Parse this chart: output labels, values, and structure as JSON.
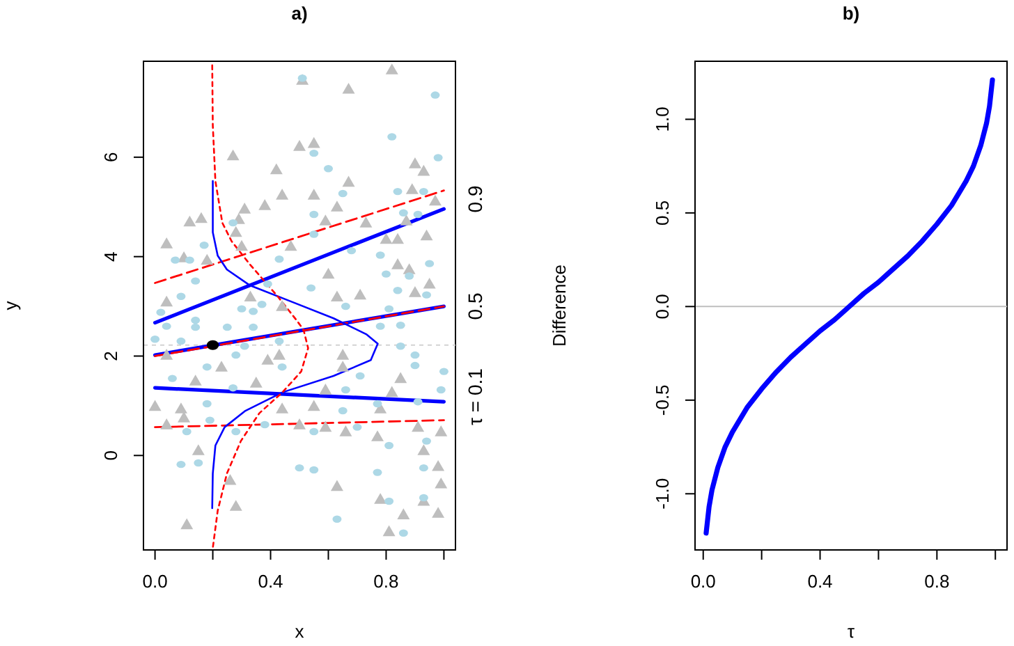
{
  "chart_data": [
    {
      "type": "scatter",
      "title": "a)",
      "xlabel": "x",
      "ylabel": "y",
      "xlim": [
        -0.04,
        1.04
      ],
      "ylim": [
        -1.9,
        7.93
      ],
      "xticks": [
        {
          "value": 0,
          "label": "0.0"
        },
        {
          "value": 0.2,
          "label": null
        },
        {
          "value": 0.4,
          "label": "0.4"
        },
        {
          "value": 0.6,
          "label": null
        },
        {
          "value": 0.8,
          "label": "0.8"
        },
        {
          "value": 1,
          "label": null
        }
      ],
      "yticks": [
        0,
        2,
        4,
        6
      ],
      "ref_lines": [
        {
          "axis": "y",
          "value": 2.22,
          "color": "#d3d3d3",
          "line_style": "dotted"
        }
      ],
      "annotations": [
        "τ = 0.1",
        "0.5",
        "0.9"
      ],
      "series": [
        {
          "marker": "triangle",
          "color": "#bebebe",
          "x": [
            0.82,
            0.51,
            0.67,
            0.55,
            0.5,
            0.27,
            0.42,
            0.9,
            0.93,
            0.67,
            0.44,
            0.55,
            0.38,
            0.63,
            0.89,
            0.97,
            0.16,
            0.12,
            0.31,
            0.29,
            0.59,
            0.73,
            0.87,
            0.04,
            0.28,
            0.1,
            0.18,
            0.3,
            0.47,
            0.8,
            0.84,
            0.94,
            0.6,
            0.84,
            0.88,
            0.95,
            0.9,
            0.63,
            0.71,
            0.04,
            0.33,
            0.44,
            0.04,
            0.23,
            0.39,
            0.43,
            0.65,
            0.65,
            0.85,
            0.14,
            0.35,
            0.59,
            0.82,
            0,
            0.09,
            0.44,
            0.55,
            0.78,
            0.04,
            0.1,
            0.5,
            0.59,
            0.66,
            0.91,
            0.99,
            0.77,
            0.15,
            0.93,
            0.98,
            0.26,
            0.63,
            0.78,
            0.93,
            0.99,
            0.28,
            0.11,
            0.98,
            0.86,
            0.81
          ],
          "values": [
            7.76,
            7.55,
            7.37,
            6.28,
            6.22,
            6.03,
            5.75,
            5.87,
            5.72,
            5.5,
            5.24,
            5.24,
            5.03,
            5.0,
            5.35,
            5.12,
            4.77,
            4.7,
            4.96,
            4.75,
            4.72,
            4.68,
            4.72,
            4.26,
            4.49,
            3.98,
            3.93,
            4.21,
            4.21,
            4.35,
            4.35,
            4.42,
            3.65,
            3.84,
            3.74,
            3.45,
            3.28,
            3.19,
            3.23,
            3.09,
            3.19,
            3.0,
            2.02,
            1.78,
            1.92,
            2.02,
            2.02,
            1.78,
            1.55,
            1.5,
            1.46,
            1.32,
            1.27,
            0.99,
            0.94,
            0.94,
            0.99,
            0.94,
            0.62,
            0.76,
            0.62,
            0.57,
            0.48,
            0.57,
            0.48,
            0.38,
            0.1,
            0.1,
            -0.22,
            -0.5,
            -0.62,
            -0.88,
            -0.92,
            -0.57,
            -1.02,
            -1.39,
            -1.16,
            -1.19,
            -1.53
          ]
        },
        {
          "marker": "circle",
          "color": "#add8e6",
          "x": [
            0.51,
            0.97,
            0.82,
            0.55,
            0.98,
            0.6,
            0.84,
            0.65,
            0.93,
            0.55,
            0.86,
            0.91,
            0.27,
            0.55,
            0.17,
            0.07,
            0.12,
            0.43,
            0.68,
            0.78,
            0.95,
            0.14,
            0.39,
            0.54,
            0.8,
            0.88,
            0.09,
            0.84,
            0.94,
            0.02,
            0.3,
            0.34,
            0.37,
            0.66,
            0.14,
            0.81,
            0.04,
            0.14,
            0.25,
            0.34,
            0.85,
            0.78,
            0,
            0.09,
            0.31,
            0.43,
            0.85,
            0.9,
            0.28,
            0.18,
            0.44,
            0.71,
            0.9,
            1.0,
            0.06,
            0.27,
            0.66,
            0.99,
            0.18,
            0.65,
            0.77,
            0.91,
            0.19,
            0.38,
            0.55,
            0.11,
            0.7,
            0.28,
            0.81,
            0.94,
            0.09,
            0.15,
            0.5,
            0.55,
            0.77,
            0.93,
            0.81,
            0.93,
            0.63,
            0.86
          ],
          "values": [
            7.59,
            7.25,
            6.41,
            6.08,
            5.99,
            5.77,
            5.31,
            5.27,
            5.31,
            4.85,
            4.88,
            4.85,
            4.68,
            4.45,
            4.23,
            3.93,
            3.93,
            3.95,
            4.12,
            4.03,
            3.86,
            3.51,
            3.45,
            3.37,
            3.65,
            3.61,
            3.2,
            3.32,
            3.23,
            2.88,
            2.95,
            2.9,
            3.04,
            3.0,
            2.72,
            2.95,
            2.6,
            2.58,
            2.58,
            2.58,
            2.62,
            2.6,
            2.34,
            2.3,
            2.2,
            2.3,
            2.2,
            2.02,
            2.02,
            1.78,
            1.78,
            1.6,
            1.81,
            1.69,
            1.55,
            1.36,
            1.32,
            1.32,
            1.04,
            0.9,
            1.04,
            1.08,
            0.71,
            0.62,
            0.48,
            0.48,
            0.57,
            0.48,
            0.2,
            0.29,
            -0.18,
            -0.15,
            -0.25,
            -0.29,
            -0.34,
            -0.25,
            -0.92,
            -0.85,
            -1.28,
            -1.56
          ]
        },
        {
          "type": "line",
          "marker": "none",
          "line_style": "solid",
          "color": "#0000ff",
          "x": [
            0,
            1
          ],
          "values": [
            2.67,
            4.96
          ]
        },
        {
          "type": "line",
          "marker": "none",
          "line_style": "dashed",
          "color": "#ff0000",
          "x": [
            0,
            1
          ],
          "values": [
            3.47,
            5.33
          ]
        },
        {
          "type": "line",
          "marker": "none",
          "line_style": "solid",
          "color": "#0000ff",
          "x": [
            0,
            1
          ],
          "values": [
            2.02,
            3.0
          ]
        },
        {
          "type": "line",
          "marker": "none",
          "line_style": "dashed",
          "color": "#ff0000",
          "x": [
            0,
            1
          ],
          "values": [
            2.0,
            3.0
          ]
        },
        {
          "type": "line",
          "marker": "none",
          "line_style": "solid",
          "color": "#0000ff",
          "x": [
            0,
            1
          ],
          "values": [
            1.36,
            1.08
          ]
        },
        {
          "type": "line",
          "marker": "none",
          "line_style": "dashed",
          "color": "#ff0000",
          "x": [
            0,
            1
          ],
          "values": [
            0.57,
            0.71
          ]
        },
        {
          "type": "line",
          "marker": "none",
          "line_style": "solid",
          "color": "#0000ff",
          "x": [
            0.2,
            0.2,
            0.217,
            0.249,
            0.329,
            0.474,
            0.618,
            0.731,
            0.771,
            0.747,
            0.618,
            0.441,
            0.313,
            0.241,
            0.209,
            0.2,
            0.198
          ],
          "values": [
            5.52,
            4.49,
            4.02,
            3.74,
            3.42,
            3.09,
            2.76,
            2.44,
            2.25,
            1.92,
            1.6,
            1.27,
            0.9,
            0.57,
            0.2,
            -0.36,
            -1.06
          ]
        },
        {
          "type": "line",
          "marker": "none",
          "line_style": "dotted",
          "color": "#ff0000",
          "x": [
            0.198,
            0.2,
            0.209,
            0.233,
            0.265,
            0.329,
            0.426,
            0.49,
            0.514,
            0.53,
            0.506,
            0.441,
            0.361,
            0.297,
            0.249,
            0.217,
            0.2
          ],
          "values": [
            7.85,
            6.64,
            5.52,
            4.68,
            4.31,
            3.84,
            3.19,
            2.72,
            2.53,
            2.16,
            1.69,
            1.27,
            0.85,
            0.29,
            -0.36,
            -1.11,
            -1.86
          ]
        },
        {
          "marker": "circle",
          "color": "#000000",
          "x": [
            0.2
          ],
          "values": [
            2.22
          ]
        }
      ]
    },
    {
      "type": "line",
      "title": "b)",
      "xlabel": "τ",
      "ylabel": "Difference",
      "xlim": [
        -0.028,
        1.04
      ],
      "ylim": [
        -1.3,
        1.31
      ],
      "xticks": [
        {
          "value": 0,
          "label": "0.0"
        },
        {
          "value": 0.2,
          "label": null
        },
        {
          "value": 0.4,
          "label": "0.4"
        },
        {
          "value": 0.6,
          "label": null
        },
        {
          "value": 0.8,
          "label": "0.8"
        },
        {
          "value": 1,
          "label": null
        }
      ],
      "yticks": [
        {
          "value": -1,
          "label": "-1.0"
        },
        {
          "value": -0.5,
          "label": "-0.5"
        },
        {
          "value": 0,
          "label": "0.0"
        },
        {
          "value": 0.5,
          "label": "0.5"
        },
        {
          "value": 1,
          "label": "1.0"
        }
      ],
      "ref_lines": [
        {
          "axis": "y",
          "value": 0,
          "color": "#bebebe",
          "line_style": "solid"
        }
      ],
      "x": [
        0.01,
        0.02,
        0.03,
        0.05,
        0.075,
        0.1,
        0.15,
        0.2,
        0.25,
        0.3,
        0.35,
        0.4,
        0.45,
        0.5,
        0.55,
        0.6,
        0.65,
        0.7,
        0.75,
        0.8,
        0.85,
        0.9,
        0.925,
        0.95,
        0.97,
        0.98,
        0.99
      ],
      "series": [
        {
          "color": "#0000ff",
          "line_style": "solid",
          "marker": "none",
          "values": [
            -1.21,
            -1.07,
            -0.98,
            -0.86,
            -0.75,
            -0.67,
            -0.54,
            -0.44,
            -0.35,
            -0.27,
            -0.2,
            -0.13,
            -0.07,
            0,
            0.07,
            0.13,
            0.2,
            0.27,
            0.35,
            0.44,
            0.54,
            0.67,
            0.75,
            0.86,
            0.98,
            1.07,
            1.21
          ]
        }
      ]
    }
  ]
}
